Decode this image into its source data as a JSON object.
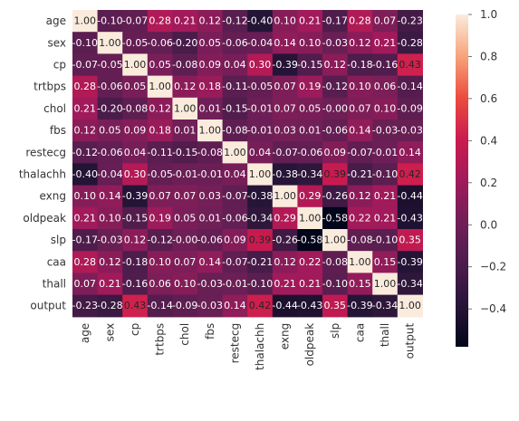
{
  "chart_data": {
    "type": "heatmap",
    "variables": [
      "age",
      "sex",
      "cp",
      "trtbps",
      "chol",
      "fbs",
      "restecg",
      "thalachh",
      "exng",
      "oldpeak",
      "slp",
      "caa",
      "thall",
      "output"
    ],
    "cell_labels": [
      [
        "1.00",
        "-0.10",
        "-0.07",
        "0.28",
        "0.21",
        "0.12",
        "-0.12",
        "-0.40",
        "0.10",
        "0.21",
        "-0.17",
        "0.28",
        "0.07",
        "-0.23"
      ],
      [
        "-0.10",
        "1.00",
        "-0.05",
        "-0.06",
        "-0.20",
        "0.05",
        "-0.06",
        "-0.04",
        "0.14",
        "0.10",
        "-0.03",
        "0.12",
        "0.21",
        "-0.28"
      ],
      [
        "-0.07",
        "-0.05",
        "1.00",
        "0.05",
        "-0.08",
        "0.09",
        "0.04",
        "0.30",
        "-0.39",
        "-0.15",
        "0.12",
        "-0.18",
        "-0.16",
        "0.43"
      ],
      [
        "0.28",
        "-0.06",
        "0.05",
        "1.00",
        "0.12",
        "0.18",
        "-0.11",
        "-0.05",
        "0.07",
        "0.19",
        "-0.12",
        "0.10",
        "0.06",
        "-0.14"
      ],
      [
        "0.21",
        "-0.20",
        "-0.08",
        "0.12",
        "1.00",
        "0.01",
        "-0.15",
        "-0.01",
        "0.07",
        "0.05",
        "-0.00",
        "0.07",
        "0.10",
        "-0.09"
      ],
      [
        "0.12",
        "0.05",
        "0.09",
        "0.18",
        "0.01",
        "1.00",
        "-0.08",
        "-0.01",
        "0.03",
        "0.01",
        "-0.06",
        "0.14",
        "-0.03",
        "-0.03"
      ],
      [
        "-0.12",
        "-0.06",
        "0.04",
        "-0.11",
        "-0.15",
        "-0.08",
        "1.00",
        "0.04",
        "-0.07",
        "-0.06",
        "0.09",
        "-0.07",
        "-0.01",
        "0.14"
      ],
      [
        "-0.40",
        "-0.04",
        "0.30",
        "-0.05",
        "-0.01",
        "-0.01",
        "0.04",
        "1.00",
        "-0.38",
        "-0.34",
        "0.39",
        "-0.21",
        "-0.10",
        "0.42"
      ],
      [
        "0.10",
        "0.14",
        "-0.39",
        "0.07",
        "0.07",
        "0.03",
        "-0.07",
        "-0.38",
        "1.00",
        "0.29",
        "-0.26",
        "0.12",
        "0.21",
        "-0.44"
      ],
      [
        "0.21",
        "0.10",
        "-0.15",
        "0.19",
        "0.05",
        "0.01",
        "-0.06",
        "-0.34",
        "0.29",
        "1.00",
        "-0.58",
        "0.22",
        "0.21",
        "-0.43"
      ],
      [
        "-0.17",
        "-0.03",
        "0.12",
        "-0.12",
        "-0.00",
        "-0.06",
        "0.09",
        "0.39",
        "-0.26",
        "-0.58",
        "1.00",
        "-0.08",
        "-0.10",
        "0.35"
      ],
      [
        "0.28",
        "0.12",
        "-0.18",
        "0.10",
        "0.07",
        "0.14",
        "-0.07",
        "-0.21",
        "0.12",
        "0.22",
        "-0.08",
        "1.00",
        "0.15",
        "-0.39"
      ],
      [
        "0.07",
        "0.21",
        "-0.16",
        "0.06",
        "0.10",
        "-0.03",
        "-0.01",
        "-0.10",
        "0.21",
        "0.21",
        "-0.10",
        "0.15",
        "1.00",
        "-0.34"
      ],
      [
        "-0.23",
        "-0.28",
        "0.43",
        "-0.14",
        "-0.09",
        "-0.03",
        "0.14",
        "0.42",
        "-0.44",
        "-0.43",
        "0.35",
        "-0.39",
        "-0.34",
        "1.00"
      ]
    ],
    "colorbar": {
      "vmin": -0.58,
      "vmax": 1.0,
      "ticks": [
        1.0,
        0.8,
        0.6,
        0.4,
        0.2,
        0.0,
        -0.2,
        -0.4
      ],
      "tick_labels": [
        "1.0",
        "0.8",
        "0.6",
        "0.4",
        "0.2",
        "0.0",
        "−0.2",
        "−0.4"
      ],
      "colormap": "rocket"
    },
    "title": "",
    "xlabel": "",
    "ylabel": "",
    "grid": false
  }
}
